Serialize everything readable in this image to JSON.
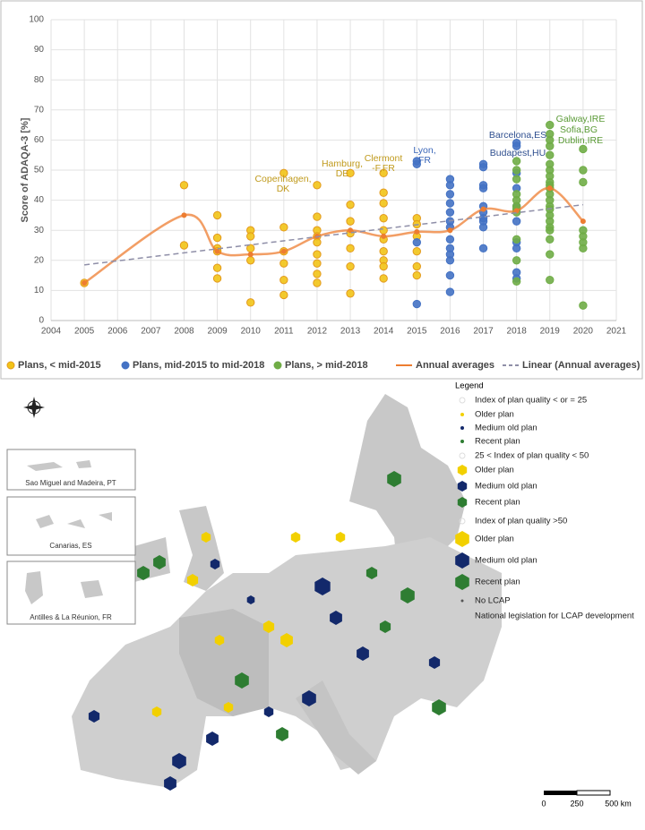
{
  "chart_data": {
    "type": "scatter",
    "ylabel": "Score of  ADAQA-3  [%]",
    "xlim": [
      2004,
      2021
    ],
    "xticks": [
      2004,
      2005,
      2006,
      2007,
      2008,
      2009,
      2010,
      2011,
      2012,
      2013,
      2014,
      2015,
      2016,
      2017,
      2018,
      2019,
      2020,
      2021
    ],
    "ylim": [
      0,
      100
    ],
    "yticks": [
      0,
      10,
      20,
      30,
      40,
      50,
      60,
      70,
      80,
      90,
      100
    ],
    "grid": true,
    "legend": "bottom",
    "series": [
      {
        "name": "Plans, < mid-2015",
        "kind": "points",
        "color": "#f2c417",
        "x": [
          2005,
          2008,
          2008,
          2009,
          2009,
          2009,
          2009,
          2009,
          2009,
          2010,
          2010,
          2010,
          2010,
          2010,
          2011,
          2011,
          2011,
          2011,
          2011,
          2011,
          2012,
          2012,
          2012,
          2012,
          2012,
          2012,
          2012,
          2012,
          2012,
          2013,
          2013,
          2013,
          2013,
          2013,
          2013,
          2013,
          2014,
          2014,
          2014,
          2014,
          2014,
          2014,
          2014,
          2014,
          2014,
          2014,
          2015,
          2015,
          2015,
          2015,
          2015,
          2015
        ],
        "values": [
          12.5,
          45,
          25,
          35,
          27.5,
          24,
          23,
          17.5,
          14,
          30,
          28,
          24,
          20,
          6,
          49,
          31,
          23,
          19,
          13.5,
          8.5,
          45,
          34.5,
          30,
          28,
          26,
          22,
          19,
          15.5,
          12.5,
          49,
          38.5,
          33,
          29,
          24,
          18,
          9,
          49,
          42.5,
          39,
          34,
          30,
          27,
          23,
          20,
          18,
          14,
          34,
          32,
          28,
          23,
          18,
          15
        ]
      },
      {
        "name": "Plans, mid-2015 to mid-2018",
        "kind": "points",
        "color": "#4472c4",
        "x": [
          2015,
          2015,
          2015,
          2015,
          2016,
          2016,
          2016,
          2016,
          2016,
          2016,
          2016,
          2016,
          2016,
          2016,
          2016,
          2016,
          2016,
          2017,
          2017,
          2017,
          2017,
          2017,
          2017,
          2017,
          2017,
          2017,
          2017,
          2018,
          2018,
          2018,
          2018,
          2018,
          2018,
          2018,
          2018,
          2018,
          2018
        ],
        "values": [
          53,
          52,
          5.5,
          26,
          47,
          45,
          42,
          39,
          36,
          33,
          31,
          27,
          24,
          22,
          20,
          15,
          9.5,
          52,
          51,
          45,
          44,
          38,
          36,
          34,
          33,
          31,
          24,
          59,
          58,
          49,
          44,
          38,
          33,
          26,
          24,
          16,
          14
        ]
      },
      {
        "name": "Plans, > mid-2018",
        "kind": "points",
        "color": "#70ad47",
        "x": [
          2018,
          2018,
          2018,
          2018,
          2018,
          2018,
          2018,
          2018,
          2018,
          2018,
          2018,
          2019,
          2019,
          2019,
          2019,
          2019,
          2019,
          2019,
          2019,
          2019,
          2019,
          2019,
          2019,
          2019,
          2019,
          2019,
          2019,
          2019,
          2019,
          2019,
          2019,
          2019,
          2019,
          2020,
          2020,
          2020,
          2020,
          2020,
          2020,
          2020,
          2020
        ],
        "values": [
          53,
          50,
          47,
          42,
          40,
          38,
          37,
          36,
          27,
          20,
          13,
          65,
          62,
          60,
          58,
          55,
          52,
          50,
          48,
          46,
          45,
          44,
          42,
          40,
          38,
          37,
          35,
          33,
          31,
          30,
          27,
          22,
          13.5,
          57,
          50,
          46,
          30,
          28,
          26,
          24,
          5
        ]
      },
      {
        "name": "Annual averages",
        "kind": "smooth",
        "color": "#ed7d31",
        "x": [
          2005,
          2008,
          2009,
          2010,
          2011,
          2012,
          2013,
          2014,
          2015,
          2016,
          2017,
          2018,
          2019,
          2020
        ],
        "values": [
          12.5,
          35,
          23,
          22,
          23,
          28,
          30,
          28,
          29.5,
          30,
          37,
          36.5,
          44,
          33
        ]
      },
      {
        "name": "Linear (Annual averages)",
        "kind": "dashed",
        "color": "#8f8fa8",
        "x": [
          2005,
          2020
        ],
        "values": [
          18.5,
          38.5
        ]
      }
    ],
    "annotations": [
      {
        "lines": [
          "Copenhagen,",
          "DK"
        ],
        "color": "#c09a1c"
      },
      {
        "lines": [
          "Hamburg,",
          "DE"
        ],
        "color": "#c09a1c"
      },
      {
        "lines": [
          "Clermont",
          "-F,FR"
        ],
        "color": "#c09a1c"
      },
      {
        "lines": [
          "Lyon,",
          "FR"
        ],
        "color": "#3a66b8"
      },
      {
        "lines": [
          "Barcelona,ES"
        ],
        "color": "#2f4f8f"
      },
      {
        "lines": [
          "Budapest,HU"
        ],
        "color": "#2f4f8f"
      },
      {
        "lines": [
          "Galway,IRE"
        ],
        "color": "#5a9a36"
      },
      {
        "lines": [
          "Sofia,BG"
        ],
        "color": "#5a9a36"
      },
      {
        "lines": [
          "Dublin,IRE"
        ],
        "color": "#5a9a36"
      }
    ]
  },
  "map": {
    "insets": [
      "Sao Miguel and Madeira, PT",
      "Canarias, ES",
      "Antilles & La Réunion, FR"
    ],
    "legend": {
      "title": "Legend",
      "items": [
        {
          "label": "Index of plan quality < or = 25"
        },
        {
          "label": "Older plan",
          "color": "#f2d000"
        },
        {
          "label": "Medium old plan",
          "color": "#13296b"
        },
        {
          "label": "Recent plan",
          "color": "#2e7d32"
        },
        {
          "label": "25 < Index of plan quality < 50"
        },
        {
          "label": "Older plan",
          "color": "#f2d000"
        },
        {
          "label": "Medium old plan",
          "color": "#13296b"
        },
        {
          "label": "Recent plan",
          "color": "#2e7d32"
        },
        {
          "label": "Index of plan quality >50"
        },
        {
          "label": "Older plan",
          "color": "#f2d000"
        },
        {
          "label": "Medium old plan",
          "color": "#13296b"
        },
        {
          "label": "Recent plan",
          "color": "#2e7d32"
        },
        {
          "label": "No LCAP",
          "color": "#555555"
        },
        {
          "label": "National legislation for LCAP development",
          "color": "#cfcfcf"
        }
      ]
    },
    "scale": [
      "0",
      "250",
      "500 km"
    ]
  }
}
